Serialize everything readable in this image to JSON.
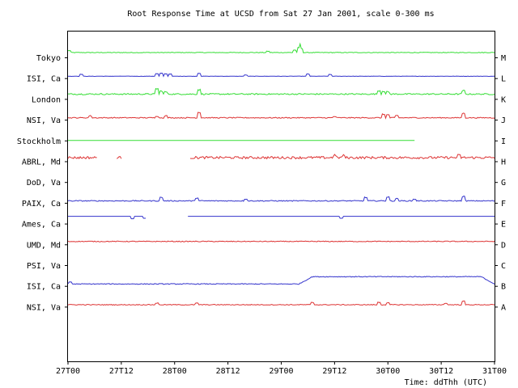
{
  "chart_data": {
    "type": "line",
    "title": "Root Response Time at UCSD from Sat 27 Jan 2001, scale 0-300 ms",
    "xlabel": "Time: ddThh (UTC)",
    "x_ticks": [
      "27T00",
      "27T12",
      "28T00",
      "28T12",
      "29T00",
      "29T12",
      "30T00",
      "30T12",
      "31T00"
    ],
    "x_range_hours": [
      0,
      96
    ],
    "y_scale_ms": [
      0,
      300
    ],
    "grid": false,
    "colors": {
      "green": "#33dd33",
      "blue": "#3333cc",
      "red": "#dd3333"
    },
    "series": [
      {
        "name": "Tokyo",
        "letter": "M",
        "color": "#33dd33",
        "base_ms": 20,
        "segments": [
          [
            0,
            96
          ]
        ],
        "noise": 0.4,
        "spikes": [
          [
            0.2,
            8
          ],
          [
            45,
            5
          ],
          [
            51,
            10
          ],
          [
            52,
            20
          ],
          [
            52.5,
            16
          ]
        ]
      },
      {
        "name": "ISI, Ca",
        "letter": "L",
        "color": "#3333cc",
        "base_ms": 8,
        "segments": [
          [
            0,
            96
          ]
        ],
        "noise": 0.2,
        "spikes": [
          [
            3,
            8
          ],
          [
            20,
            10
          ],
          [
            21,
            12
          ],
          [
            22,
            10
          ],
          [
            23,
            9
          ],
          [
            29.5,
            12
          ],
          [
            40,
            5
          ],
          [
            54,
            9
          ],
          [
            59,
            7
          ]
        ]
      },
      {
        "name": "London",
        "letter": "K",
        "color": "#33dd33",
        "base_ms": 20,
        "segments": [
          [
            0,
            96
          ]
        ],
        "noise": 0.8,
        "spikes": [
          [
            20,
            22
          ],
          [
            21,
            12
          ],
          [
            22,
            9
          ],
          [
            29.5,
            18
          ],
          [
            70,
            14
          ],
          [
            71,
            12
          ],
          [
            72,
            9
          ],
          [
            89,
            14
          ]
        ]
      },
      {
        "name": "NSI, Va",
        "letter": "J",
        "color": "#dd3333",
        "base_ms": 8,
        "segments": [
          [
            0,
            96
          ]
        ],
        "noise": 0.6,
        "spikes": [
          [
            5,
            8
          ],
          [
            20,
            7
          ],
          [
            22,
            8
          ],
          [
            29.5,
            22
          ],
          [
            60,
            5
          ],
          [
            71,
            14
          ],
          [
            72,
            12
          ],
          [
            74,
            9
          ],
          [
            89,
            18
          ]
        ]
      },
      {
        "name": "Stockholm",
        "letter": "I",
        "color": "#33dd33",
        "base_ms": 65,
        "segments": [
          [
            0,
            78
          ]
        ],
        "noise": 0,
        "spikes": []
      },
      {
        "name": "ABRL, Md",
        "letter": "H",
        "color": "#dd3333",
        "base_ms": 15,
        "segments": [
          [
            0,
            6.5
          ],
          [
            11,
            12
          ],
          [
            27.5,
            96
          ]
        ],
        "noise": 1.5,
        "spikes": [
          [
            60,
            10
          ],
          [
            62,
            8
          ],
          [
            88,
            9
          ]
        ]
      },
      {
        "name": "DoD, Va",
        "letter": "G",
        "color": "#dd3333",
        "base_ms": 0,
        "segments": [],
        "noise": 0,
        "spikes": []
      },
      {
        "name": "PAIX, Ca",
        "letter": "F",
        "color": "#3333cc",
        "base_ms": 8,
        "segments": [
          [
            0,
            96
          ]
        ],
        "noise": 0.6,
        "spikes": [
          [
            21,
            14
          ],
          [
            29,
            12
          ],
          [
            40,
            8
          ],
          [
            67,
            14
          ],
          [
            72,
            16
          ],
          [
            74,
            9
          ],
          [
            78,
            7
          ],
          [
            89,
            18
          ]
        ]
      },
      {
        "name": "Ames, Ca",
        "letter": "E",
        "color": "#3333cc",
        "base_ms": 30,
        "segments": [
          [
            0,
            17.5
          ],
          [
            27,
            96
          ]
        ],
        "noise": 0,
        "spikes": [
          [
            14.5,
            -10
          ],
          [
            17.3,
            -8
          ],
          [
            61.5,
            -8
          ]
        ]
      },
      {
        "name": "UMD, Md",
        "letter": "D",
        "color": "#dd3333",
        "base_ms": 12,
        "segments": [
          [
            0,
            96
          ]
        ],
        "noise": 0.5,
        "spikes": []
      },
      {
        "name": "PSI, Va",
        "letter": "C",
        "color": "#3333cc",
        "base_ms": 0,
        "segments": [],
        "noise": 0,
        "spikes": []
      },
      {
        "name": "ISI, Ca",
        "letter": "B",
        "color": "#3333cc",
        "base_ms": 8,
        "segments": [
          [
            0,
            96
          ]
        ],
        "noise": 0.5,
        "plateaus": [
          [
            52,
            96,
            30
          ]
        ],
        "spikes": [
          [
            0.5,
            8
          ]
        ]
      },
      {
        "name": "NSI, Va",
        "letter": "A",
        "color": "#dd3333",
        "base_ms": 8,
        "segments": [
          [
            0,
            96
          ]
        ],
        "noise": 0.5,
        "spikes": [
          [
            20,
            7
          ],
          [
            29,
            6
          ],
          [
            55,
            9
          ],
          [
            70,
            10
          ],
          [
            72,
            7
          ],
          [
            85,
            6
          ],
          [
            89,
            14
          ]
        ]
      }
    ]
  }
}
